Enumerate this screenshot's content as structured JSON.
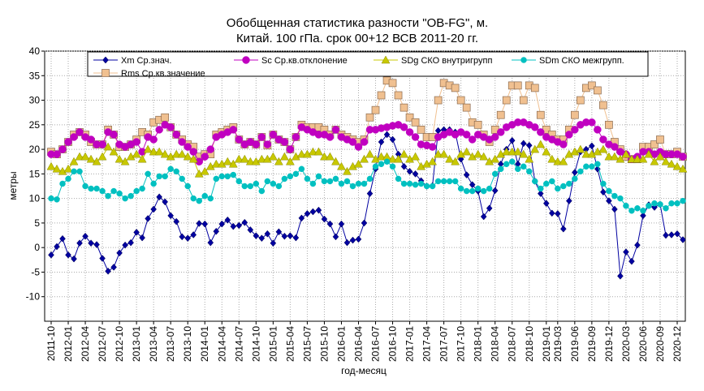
{
  "chart_data": {
    "type": "line",
    "title": [
      "Обобщенная статистика разности \"OB-FG\", м.",
      "Китай. 100 гПа. срок 00+12 ВСВ 2011-20 гг."
    ],
    "xlabel": "год-месяц",
    "ylabel": "метры",
    "ylim": [
      -15,
      40
    ],
    "yticks": [
      -10,
      -5,
      0,
      5,
      10,
      15,
      20,
      25,
      30,
      35,
      40
    ],
    "grid": true,
    "legend_position": "top",
    "x_start": "2011-10",
    "x_end": "2020-12",
    "xtick_labels": [
      "2011-10",
      "2012-01",
      "2012-04",
      "2012-07",
      "2012-10",
      "2013-01",
      "2013-04",
      "2013-07",
      "2013-10",
      "2014-01",
      "2014-04",
      "2014-07",
      "2014-10",
      "2015-01",
      "2015-04",
      "2015-07",
      "2015-10",
      "2016-01",
      "2016-04",
      "2016-07",
      "2016-10",
      "2017-01",
      "2017-04",
      "2017-07",
      "2017-10",
      "2018-01",
      "2018-04",
      "2018-07",
      "2018-10",
      "2019-01",
      "2019-03",
      "2019-06",
      "2019-09",
      "2019-12",
      "2020-03",
      "2020-06",
      "2020-09",
      "2020-12"
    ],
    "series": [
      {
        "name": "Xm Ср.знач.",
        "color": "#0000a0",
        "marker": "diamond",
        "values": [
          -1.5,
          0.2,
          1.8,
          -1.5,
          -2.3,
          0.9,
          2.3,
          0.9,
          0.6,
          -2.2,
          -4.8,
          -4.0,
          -1.1,
          0.5,
          1.0,
          3.1,
          2.0,
          5.9,
          7.8,
          10.3,
          9.3,
          6.5,
          5.3,
          2.2,
          1.9,
          2.6,
          4.9,
          4.8,
          1.0,
          3.3,
          4.8,
          5.6,
          4.3,
          4.5,
          5.1,
          3.6,
          2.4,
          1.9,
          2.8,
          0.9,
          3.2,
          2.3,
          2.4,
          2.0,
          6.0,
          6.9,
          7.3,
          7.6,
          5.8,
          4.8,
          2.2,
          4.8,
          1.0,
          1.5,
          1.7,
          5.0,
          11.0,
          16.0,
          21.5,
          23.0,
          22.0,
          19.0,
          16.5,
          15.5,
          15.0,
          13.6,
          12.5,
          12.6,
          23.8,
          24.0,
          24.0,
          23.5,
          18.0,
          14.8,
          12.8,
          11.5,
          6.3,
          8.0,
          11.6,
          17.0,
          20.0,
          21.8,
          17.0,
          21.2,
          20.8,
          13.5,
          11.0,
          9.0,
          7.0,
          6.9,
          3.8,
          9.5,
          15.3,
          19.5,
          20.0,
          20.7,
          16.0,
          11.3,
          9.5,
          7.8,
          -5.8,
          -0.9,
          -2.8,
          0.5,
          6.5,
          8.7,
          8.2,
          8.8,
          2.5,
          2.6,
          2.8,
          1.6
        ]
      },
      {
        "name": "Sc Ср.кв.отклонение",
        "color": "#c000c0",
        "marker": "circle",
        "values": [
          19.0,
          19.0,
          20.0,
          21.5,
          22.5,
          23.5,
          22.5,
          22.0,
          21.0,
          21.0,
          23.5,
          23.0,
          21.0,
          20.5,
          21.0,
          21.5,
          19.5,
          22.5,
          22.0,
          24.0,
          25.0,
          24.5,
          23.0,
          21.5,
          20.5,
          19.5,
          17.5,
          18.5,
          20.0,
          22.5,
          23.0,
          23.5,
          24.0,
          22.0,
          21.0,
          21.5,
          21.0,
          22.5,
          21.0,
          23.0,
          22.0,
          21.5,
          20.0,
          22.5,
          24.5,
          24.0,
          23.5,
          23.0,
          23.0,
          22.5,
          24.0,
          22.5,
          22.0,
          21.5,
          20.5,
          21.5,
          24.0,
          24.0,
          24.3,
          24.5,
          24.8,
          25.0,
          24.5,
          23.5,
          22.5,
          21.0,
          20.8,
          20.5,
          22.5,
          23.0,
          23.5,
          23.0,
          23.5,
          23.0,
          22.0,
          23.0,
          22.5,
          22.0,
          22.5,
          23.5,
          24.5,
          25.0,
          25.5,
          25.5,
          25.0,
          24.5,
          23.5,
          22.5,
          22.0,
          21.5,
          21.0,
          23.0,
          24.0,
          25.0,
          25.5,
          25.5,
          24.0,
          22.0,
          21.0,
          20.5,
          19.5,
          19.0,
          18.0,
          18.5,
          19.5,
          19.5,
          19.0,
          19.5,
          19.0,
          19.0,
          19.0,
          18.5
        ]
      },
      {
        "name": "SDg СКО внутригрупп",
        "color": "#c8c800",
        "marker": "triangle",
        "values": [
          16.5,
          16.0,
          15.5,
          16.0,
          17.5,
          18.5,
          18.5,
          18.0,
          17.5,
          18.5,
          20.5,
          19.5,
          18.0,
          17.5,
          18.5,
          19.0,
          18.0,
          20.0,
          19.5,
          19.5,
          19.0,
          18.5,
          19.0,
          19.0,
          18.5,
          18.0,
          15.0,
          15.5,
          16.5,
          17.0,
          17.0,
          17.5,
          17.0,
          18.0,
          18.0,
          17.5,
          17.5,
          18.0,
          18.0,
          18.5,
          17.5,
          18.5,
          17.5,
          18.5,
          19.0,
          19.0,
          19.5,
          19.5,
          18.5,
          18.5,
          17.5,
          16.5,
          15.5,
          16.5,
          17.0,
          18.0,
          19.0,
          18.0,
          18.5,
          18.5,
          18.0,
          18.0,
          19.0,
          18.0,
          18.5,
          16.5,
          17.0,
          17.5,
          19.0,
          19.0,
          18.0,
          17.5,
          19.0,
          19.5,
          18.5,
          19.0,
          18.5,
          17.5,
          18.0,
          19.0,
          19.5,
          19.5,
          19.5,
          19.0,
          18.0,
          20.0,
          21.0,
          19.5,
          18.0,
          17.5,
          17.5,
          19.0,
          19.5,
          20.0,
          19.0,
          19.0,
          19.5,
          20.0,
          18.5,
          18.5,
          18.0,
          19.0,
          18.0,
          18.0,
          18.0,
          19.0,
          17.5,
          18.5,
          17.5,
          17.0,
          16.5,
          16.0
        ]
      },
      {
        "name": "SDm СКО межгрупп.",
        "color": "#00c0c0",
        "marker": "circle",
        "values": [
          10.0,
          9.8,
          13.0,
          14.0,
          15.5,
          15.5,
          12.5,
          12.0,
          12.0,
          11.5,
          10.5,
          11.5,
          11.0,
          10.0,
          10.5,
          11.5,
          12.0,
          15.0,
          13.0,
          14.5,
          14.5,
          16.0,
          15.5,
          14.0,
          12.5,
          10.0,
          9.5,
          10.5,
          10.0,
          14.0,
          14.5,
          14.5,
          14.8,
          13.5,
          12.5,
          12.5,
          13.0,
          11.5,
          13.5,
          13.0,
          12.5,
          14.0,
          14.5,
          15.0,
          16.0,
          14.0,
          13.0,
          14.5,
          13.5,
          13.5,
          14.0,
          13.0,
          13.5,
          12.5,
          13.0,
          13.0,
          14.0,
          16.5,
          17.0,
          17.5,
          16.5,
          14.0,
          13.0,
          13.0,
          12.8,
          13.0,
          12.5,
          12.5,
          13.5,
          13.5,
          13.5,
          13.5,
          12.0,
          11.5,
          11.5,
          12.0,
          11.5,
          12.0,
          15.0,
          16.0,
          17.0,
          17.5,
          16.0,
          16.5,
          15.5,
          13.5,
          12.0,
          13.0,
          13.5,
          12.0,
          12.5,
          13.0,
          14.0,
          15.5,
          16.5,
          16.5,
          17.0,
          13.0,
          11.5,
          10.5,
          10.0,
          8.5,
          7.5,
          8.0,
          7.5,
          8.5,
          9.0,
          8.8,
          8.0,
          9.0,
          9.0,
          9.5
        ]
      },
      {
        "name": "Rms Ср.кв.значение",
        "color": "#f0c090",
        "marker": "square",
        "values": [
          19.5,
          19.0,
          20.0,
          21.5,
          23.0,
          23.5,
          23.0,
          21.5,
          21.0,
          21.0,
          24.0,
          23.0,
          20.5,
          20.5,
          21.0,
          22.0,
          23.5,
          23.0,
          25.5,
          26.0,
          26.5,
          24.5,
          23.0,
          22.0,
          21.0,
          20.5,
          18.5,
          19.0,
          19.0,
          23.0,
          23.5,
          24.0,
          24.5,
          22.0,
          21.0,
          21.5,
          21.0,
          22.5,
          20.8,
          23.0,
          22.0,
          21.5,
          20.0,
          22.5,
          25.0,
          24.5,
          24.5,
          24.5,
          24.0,
          23.0,
          24.0,
          23.0,
          22.5,
          22.0,
          21.5,
          22.0,
          26.5,
          28.0,
          31.0,
          34.0,
          33.5,
          31.0,
          28.5,
          26.5,
          25.5,
          24.0,
          22.5,
          22.5,
          30.0,
          33.5,
          33.0,
          32.5,
          30.0,
          28.5,
          25.5,
          25.0,
          23.0,
          21.5,
          24.0,
          27.0,
          30.0,
          33.0,
          33.0,
          30.0,
          33.0,
          32.5,
          27.0,
          24.0,
          23.0,
          22.0,
          22.0,
          24.0,
          27.0,
          30.0,
          32.5,
          33.0,
          32.0,
          29.0,
          25.0,
          21.5,
          20.0,
          18.5,
          18.0,
          18.0,
          20.5,
          20.5,
          21.0,
          22.0,
          19.0,
          19.0,
          19.5,
          18.5
        ]
      }
    ]
  }
}
